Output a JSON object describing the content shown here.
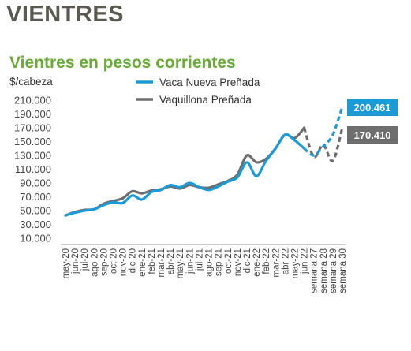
{
  "header": {
    "title": "VIENTRES"
  },
  "chart_data": {
    "type": "line",
    "title": "Vientres en pesos corrientes",
    "ylabel": "$/cabeza",
    "ylim": [
      10000,
      210000
    ],
    "yticks": [
      "210.000",
      "190.000",
      "170.000",
      "150.000",
      "130.000",
      "110.000",
      "90.000",
      "70.000",
      "50.000",
      "30.000",
      "10.000"
    ],
    "categories": [
      "may-20",
      "jun-20",
      "jul-20",
      "ago-20",
      "sep-20",
      "oct-20",
      "nov-20",
      "dic-20",
      "ene-21",
      "feb-21",
      "mar-21",
      "abr-21",
      "may-21",
      "jun-21",
      "jul-21",
      "ago-21",
      "sep-21",
      "oct-21",
      "nov-21",
      "dic-21",
      "ene-22",
      "feb-22",
      "mar-22",
      "abr-22",
      "may-22",
      "jun-22",
      "semana 27",
      "semana 28",
      "semana 29",
      "semana 30"
    ],
    "series": [
      {
        "name": "Vaca Nueva Preñada",
        "color": "#1a9ad6",
        "values": [
          43000,
          47000,
          50000,
          52000,
          58000,
          62000,
          61000,
          72000,
          66000,
          77000,
          80000,
          87000,
          84000,
          90000,
          84000,
          80000,
          85000,
          92000,
          98000,
          120000,
          100000,
          122000,
          140000,
          160000,
          152000,
          140000,
          130000,
          143000,
          160000,
          200461
        ],
        "projected_from_index": 26
      },
      {
        "name": "Vaquillona Preñada",
        "color": "#6e6e6e",
        "values": [
          43000,
          48000,
          51000,
          52000,
          60000,
          64000,
          68000,
          78000,
          75000,
          79000,
          81000,
          85000,
          82000,
          87000,
          84000,
          83000,
          88000,
          93000,
          102000,
          130000,
          120000,
          125000,
          140000,
          160000,
          155000,
          170000,
          128000,
          145000,
          122000,
          170410
        ],
        "projected_from_index": 26
      }
    ],
    "end_labels": [
      "200.461",
      "170.410"
    ],
    "grid": false,
    "legend": "top"
  }
}
